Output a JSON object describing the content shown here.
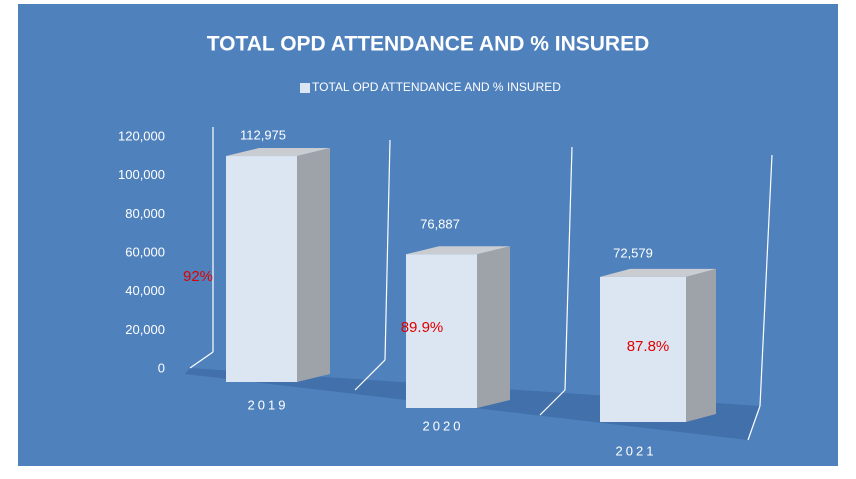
{
  "chart_data": {
    "type": "bar3d",
    "title": "TOTAL OPD ATTENDANCE AND % INSURED",
    "categories": [
      "2019",
      "2020",
      "2021"
    ],
    "series": [
      {
        "name": "TOTAL OPD ATTENDANCE AND % INSURED",
        "color": "#dce6f2",
        "values": [
          112975,
          76887,
          72579
        ],
        "value_labels": [
          "112,975",
          "76,887",
          "72,579"
        ]
      }
    ],
    "annotations": [
      "92%",
      "89.9%",
      "87.8%"
    ],
    "ylim": [
      0,
      120000
    ],
    "yticks": [
      0,
      {
        "value": 20000,
        "label": "20,000"
      },
      {
        "value": 40000,
        "label": "40,000"
      },
      {
        "value": 60000,
        "label": "60,000"
      },
      {
        "value": 80000,
        "label": "80,000"
      },
      {
        "value": 100000,
        "label": "100,000"
      },
      {
        "value": 120000,
        "label": "120,000"
      }
    ]
  }
}
